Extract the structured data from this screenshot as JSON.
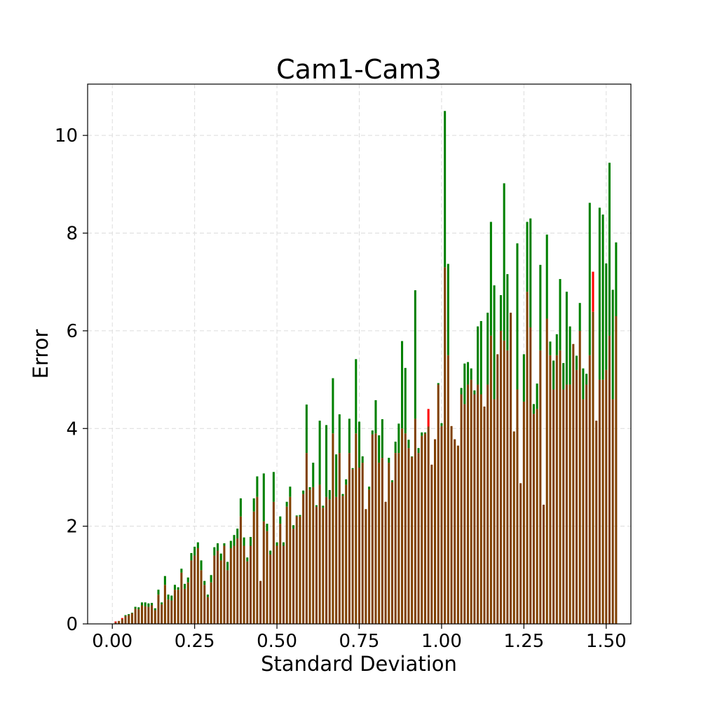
{
  "chart_data": {
    "type": "bar",
    "title": "Cam1-Cam3",
    "xlabel": "Standard Deviation",
    "ylabel": "Error",
    "xlim": [
      -0.075,
      1.575
    ],
    "ylim": [
      0,
      11.05
    ],
    "xticks": [
      "0.00",
      "0.25",
      "0.50",
      "0.75",
      "1.00",
      "1.25",
      "1.50"
    ],
    "yticks": [
      "0",
      "2",
      "4",
      "6",
      "8",
      "10"
    ],
    "grid": true,
    "bar_width": 0.0065,
    "colors": {
      "green": "#008000",
      "red": "#ff0000",
      "overlap": "#804000"
    },
    "x_start": 0.01,
    "x_step": 0.01,
    "series": [
      {
        "color": "green",
        "values": [
          0.03,
          0.06,
          0.1,
          0.18,
          0.2,
          0.23,
          0.35,
          0.34,
          0.44,
          0.44,
          0.42,
          0.43,
          0.32,
          0.7,
          0.44,
          0.98,
          0.6,
          0.58,
          0.8,
          0.75,
          1.13,
          0.82,
          0.95,
          1.45,
          1.58,
          1.67,
          1.3,
          0.88,
          0.6,
          1.0,
          1.57,
          1.65,
          1.44,
          1.65,
          1.27,
          1.7,
          1.82,
          1.95,
          2.57,
          1.77,
          1.36,
          1.78,
          2.57,
          3.02,
          0.88,
          3.08,
          2.05,
          1.5,
          3.11,
          1.67,
          2.2,
          1.67,
          2.5,
          2.81,
          2.02,
          2.22,
          2.23,
          2.73,
          4.49,
          2.8,
          3.3,
          2.43,
          4.16,
          2.42,
          4.07,
          2.74,
          5.03,
          3.47,
          4.29,
          2.66,
          2.96,
          4.2,
          3.19,
          5.42,
          4.14,
          3.43,
          2.35,
          2.81,
          3.96,
          4.58,
          3.86,
          4.19,
          2.5,
          3.4,
          2.94,
          3.73,
          4.1,
          5.79,
          5.24,
          3.77,
          3.43,
          6.83,
          3.6,
          3.92,
          3.92,
          4.04,
          3.26,
          3.78,
          4.93,
          4.11,
          10.5,
          7.37,
          4.05,
          3.78,
          3.65,
          4.83,
          5.33,
          5.36,
          5.23,
          4.78,
          6.09,
          6.2,
          4.45,
          6.37,
          8.23,
          6.93,
          5.52,
          6.73,
          9.02,
          7.16,
          6.37,
          3.94,
          7.79,
          2.88,
          5.52,
          8.23,
          8.3,
          4.5,
          4.92,
          7.35,
          2.44,
          7.97,
          5.78,
          5.39,
          5.93,
          7.06,
          5.34,
          6.8,
          6.09,
          5.73,
          5.49,
          6.57,
          5.23,
          5.12,
          8.62,
          6.39,
          4.16,
          8.52,
          8.38,
          7.38,
          9.44,
          6.84,
          7.81
        ]
      },
      {
        "color": "red",
        "values": [
          0.05,
          0.06,
          0.12,
          0.16,
          0.18,
          0.22,
          0.31,
          0.3,
          0.38,
          0.36,
          0.35,
          0.38,
          0.28,
          0.6,
          0.4,
          0.8,
          0.5,
          0.48,
          0.7,
          0.7,
          1.05,
          0.72,
          0.85,
          1.3,
          1.4,
          1.55,
          1.1,
          0.8,
          0.55,
          0.85,
          1.4,
          1.5,
          1.3,
          1.6,
          1.1,
          1.55,
          1.6,
          1.75,
          2.2,
          1.6,
          1.28,
          1.6,
          2.3,
          2.6,
          0.88,
          2.1,
          1.9,
          1.42,
          2.5,
          1.6,
          2.05,
          1.6,
          2.4,
          2.6,
          1.95,
          2.2,
          2.2,
          2.66,
          3.5,
          2.75,
          2.8,
          2.4,
          2.85,
          2.38,
          2.6,
          2.55,
          3.9,
          2.6,
          3.5,
          2.62,
          2.85,
          3.5,
          3.17,
          3.9,
          3.2,
          3.3,
          2.35,
          2.75,
          3.88,
          3.9,
          3.3,
          3.4,
          2.5,
          3.3,
          2.9,
          3.5,
          3.5,
          4.0,
          3.9,
          3.6,
          3.42,
          4.2,
          3.5,
          3.85,
          3.9,
          4.4,
          3.26,
          3.78,
          4.9,
          4.05,
          7.3,
          5.5,
          4.05,
          3.78,
          3.65,
          4.7,
          4.5,
          4.9,
          5.0,
          4.7,
          4.9,
          4.7,
          4.45,
          4.9,
          5.9,
          4.6,
          5.52,
          6.0,
          5.8,
          5.6,
          6.37,
          3.94,
          4.8,
          2.88,
          4.55,
          6.8,
          6.07,
          4.3,
          4.4,
          5.6,
          2.44,
          6.25,
          5.5,
          4.8,
          5.5,
          5.6,
          4.8,
          4.9,
          4.9,
          5.73,
          5.2,
          6.0,
          4.6,
          4.9,
          5.5,
          7.21,
          4.16,
          5.0,
          5.0,
          5.2,
          5.9,
          4.6,
          6.3
        ]
      }
    ]
  }
}
